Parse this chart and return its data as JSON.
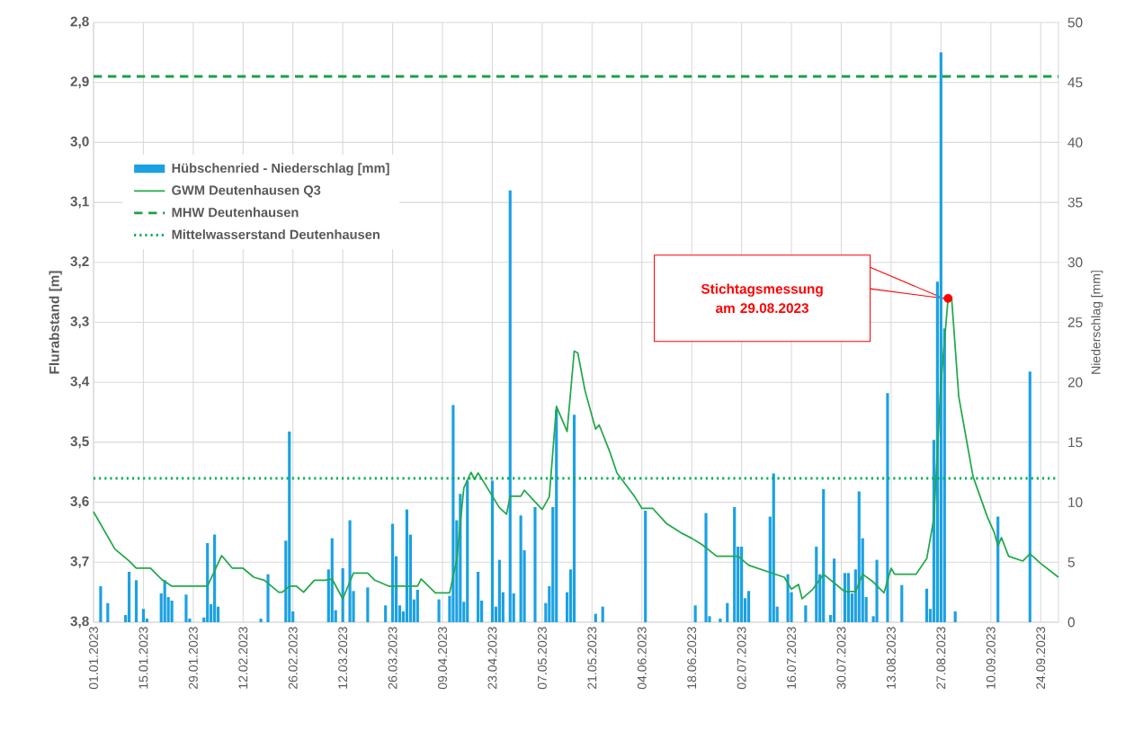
{
  "chart_data": {
    "type": "bar",
    "ylabel": "Flurabstand [m]",
    "y2label": "Niederschlag [mm]",
    "xlim": [
      "2023-01-01",
      "2023-09-29"
    ],
    "xticks": [
      {
        "value": "2023-01-01",
        "label": "01.01.2023"
      },
      {
        "value": "2023-01-15",
        "label": "15.01.2023"
      },
      {
        "value": "2023-01-29",
        "label": "29.01.2023"
      },
      {
        "value": "2023-02-12",
        "label": "12.02.2023"
      },
      {
        "value": "2023-02-26",
        "label": "26.02.2023"
      },
      {
        "value": "2023-03-12",
        "label": "12.03.2023"
      },
      {
        "value": "2023-03-26",
        "label": "26.03.2023"
      },
      {
        "value": "2023-04-09",
        "label": "09.04.2023"
      },
      {
        "value": "2023-04-23",
        "label": "23.04.2023"
      },
      {
        "value": "2023-05-07",
        "label": "07.05.2023"
      },
      {
        "value": "2023-05-21",
        "label": "21.05.2023"
      },
      {
        "value": "2023-06-04",
        "label": "04.06.2023"
      },
      {
        "value": "2023-06-18",
        "label": "18.06.2023"
      },
      {
        "value": "2023-07-02",
        "label": "02.07.2023"
      },
      {
        "value": "2023-07-16",
        "label": "16.07.2023"
      },
      {
        "value": "2023-07-30",
        "label": "30.07.2023"
      },
      {
        "value": "2023-08-13",
        "label": "13.08.2023"
      },
      {
        "value": "2023-08-27",
        "label": "27.08.2023"
      },
      {
        "value": "2023-09-10",
        "label": "10.09.2023"
      },
      {
        "value": "2023-09-24",
        "label": "24.09.2023"
      }
    ],
    "ylim": [
      3.8,
      2.8
    ],
    "yticks": [
      {
        "value": 3.8,
        "label": "3,8"
      },
      {
        "value": 3.7,
        "label": "3,7"
      },
      {
        "value": 3.6,
        "label": "3,6"
      },
      {
        "value": 3.5,
        "label": "3,5"
      },
      {
        "value": 3.4,
        "label": "3,4"
      },
      {
        "value": 3.3,
        "label": "3,3"
      },
      {
        "value": 3.2,
        "label": "3,2"
      },
      {
        "value": 3.1,
        "label": "3,1"
      },
      {
        "value": 3.0,
        "label": "3,0"
      },
      {
        "value": 2.9,
        "label": "2,9"
      },
      {
        "value": 2.8,
        "label": "2,8"
      }
    ],
    "y2lim": [
      0,
      50
    ],
    "y2ticks": [
      0,
      5,
      10,
      15,
      20,
      25,
      30,
      35,
      40,
      45,
      50
    ],
    "grid": true,
    "legend": "top left",
    "series": [
      {
        "name": "Hübschenried - Niederschlag [mm]",
        "type": "bar",
        "axis": "y2",
        "color": "#1ba1e2",
        "x": [
          "2023-01-03",
          "2023-01-05",
          "2023-01-10",
          "2023-01-11",
          "2023-01-13",
          "2023-01-15",
          "2023-01-16",
          "2023-01-20",
          "2023-01-21",
          "2023-01-22",
          "2023-01-23",
          "2023-01-27",
          "2023-01-28",
          "2023-02-01",
          "2023-02-02",
          "2023-02-03",
          "2023-02-04",
          "2023-02-05",
          "2023-02-17",
          "2023-02-19",
          "2023-02-24",
          "2023-02-25",
          "2023-02-26",
          "2023-03-08",
          "2023-03-09",
          "2023-03-10",
          "2023-03-12",
          "2023-03-14",
          "2023-03-15",
          "2023-03-19",
          "2023-03-24",
          "2023-03-26",
          "2023-03-27",
          "2023-03-28",
          "2023-03-29",
          "2023-03-30",
          "2023-03-31",
          "2023-04-01",
          "2023-04-02",
          "2023-04-08",
          "2023-04-11",
          "2023-04-12",
          "2023-04-13",
          "2023-04-14",
          "2023-04-15",
          "2023-04-16",
          "2023-04-19",
          "2023-04-20",
          "2023-04-23",
          "2023-04-24",
          "2023-04-25",
          "2023-04-26",
          "2023-04-28",
          "2023-04-29",
          "2023-05-01",
          "2023-05-02",
          "2023-05-05",
          "2023-05-08",
          "2023-05-09",
          "2023-05-10",
          "2023-05-11",
          "2023-05-14",
          "2023-05-15",
          "2023-05-16",
          "2023-05-22",
          "2023-05-24",
          "2023-06-05",
          "2023-06-19",
          "2023-06-22",
          "2023-06-23",
          "2023-06-26",
          "2023-06-28",
          "2023-06-30",
          "2023-07-01",
          "2023-07-02",
          "2023-07-03",
          "2023-07-04",
          "2023-07-10",
          "2023-07-11",
          "2023-07-12",
          "2023-07-15",
          "2023-07-16",
          "2023-07-20",
          "2023-07-23",
          "2023-07-24",
          "2023-07-25",
          "2023-07-27",
          "2023-07-28",
          "2023-07-31",
          "2023-08-01",
          "2023-08-02",
          "2023-08-03",
          "2023-08-04",
          "2023-08-05",
          "2023-08-06",
          "2023-08-08",
          "2023-08-09",
          "2023-08-12",
          "2023-08-16",
          "2023-08-23",
          "2023-08-24",
          "2023-08-25",
          "2023-08-26",
          "2023-08-27",
          "2023-08-28",
          "2023-08-31",
          "2023-09-12",
          "2023-09-21"
        ],
        "values": [
          3.0,
          1.6,
          0.6,
          4.2,
          3.5,
          1.1,
          0.3,
          2.4,
          3.5,
          2.1,
          1.8,
          2.3,
          0.3,
          0.4,
          6.6,
          1.5,
          7.3,
          1.3,
          0.3,
          4.0,
          6.8,
          15.9,
          0.9,
          4.4,
          7.0,
          1.0,
          4.5,
          8.5,
          2.6,
          2.9,
          1.4,
          8.2,
          5.5,
          1.4,
          0.9,
          9.4,
          7.3,
          1.9,
          2.7,
          1.9,
          2.2,
          18.1,
          8.5,
          10.7,
          1.7,
          11.8,
          4.2,
          1.8,
          11.8,
          1.3,
          5.2,
          2.5,
          36.0,
          2.4,
          8.9,
          6.0,
          9.6,
          1.6,
          3.0,
          9.6,
          17.7,
          2.5,
          4.4,
          17.3,
          0.7,
          1.3,
          9.3,
          1.4,
          9.1,
          0.5,
          0.3,
          1.6,
          9.6,
          6.3,
          6.3,
          2.0,
          2.6,
          8.8,
          12.4,
          1.3,
          4.0,
          2.5,
          1.4,
          6.3,
          4.0,
          11.1,
          0.6,
          5.3,
          4.1,
          4.1,
          2.4,
          4.4,
          10.9,
          7.0,
          2.1,
          0.5,
          5.2,
          19.1,
          3.1,
          2.8,
          1.1,
          15.2,
          28.4,
          47.5,
          24.5,
          0.9,
          8.8,
          20.9
        ]
      },
      {
        "name": "GWM Deutenhausen Q3",
        "type": "line",
        "color": "#22a84a",
        "x": [
          "2023-01-01",
          "2023-01-07",
          "2023-01-11",
          "2023-01-13",
          "2023-01-17",
          "2023-01-20",
          "2023-01-23",
          "2023-02-02",
          "2023-02-06",
          "2023-02-09",
          "2023-02-12",
          "2023-02-15",
          "2023-02-18",
          "2023-02-22",
          "2023-02-23",
          "2023-02-25",
          "2023-02-27",
          "2023-03-01",
          "2023-03-04",
          "2023-03-07",
          "2023-03-09",
          "2023-03-12",
          "2023-03-15",
          "2023-03-19",
          "2023-03-21",
          "2023-03-25",
          "2023-04-02",
          "2023-04-03",
          "2023-04-07",
          "2023-04-11",
          "2023-04-13",
          "2023-04-15",
          "2023-04-17",
          "2023-04-18",
          "2023-04-19",
          "2023-04-25",
          "2023-04-27",
          "2023-04-28",
          "2023-05-01",
          "2023-05-02",
          "2023-05-04",
          "2023-05-07",
          "2023-05-09",
          "2023-05-11",
          "2023-05-14",
          "2023-05-16",
          "2023-05-17",
          "2023-05-19",
          "2023-05-22",
          "2023-05-23",
          "2023-05-26",
          "2023-05-28",
          "2023-06-02",
          "2023-06-04",
          "2023-06-07",
          "2023-06-11",
          "2023-06-15",
          "2023-06-18",
          "2023-06-21",
          "2023-06-25",
          "2023-07-01",
          "2023-07-04",
          "2023-07-14",
          "2023-07-16",
          "2023-07-18",
          "2023-07-19",
          "2023-07-22",
          "2023-07-25",
          "2023-07-31",
          "2023-08-03",
          "2023-08-05",
          "2023-08-08",
          "2023-08-11",
          "2023-08-13",
          "2023-08-14",
          "2023-08-20",
          "2023-08-23",
          "2023-08-25",
          "2023-08-27",
          "2023-08-29",
          "2023-08-30",
          "2023-09-01",
          "2023-09-05",
          "2023-09-09",
          "2023-09-11",
          "2023-09-12",
          "2023-09-13",
          "2023-09-15",
          "2023-09-19",
          "2023-09-21",
          "2023-09-24",
          "2023-09-29"
        ],
        "values": [
          3.616,
          3.678,
          3.698,
          3.71,
          3.71,
          3.728,
          3.74,
          3.74,
          3.689,
          3.71,
          3.71,
          3.725,
          3.73,
          3.75,
          3.75,
          3.74,
          3.74,
          3.75,
          3.73,
          3.73,
          3.728,
          3.761,
          3.718,
          3.718,
          3.73,
          3.74,
          3.74,
          3.728,
          3.751,
          3.751,
          3.696,
          3.576,
          3.55,
          3.562,
          3.551,
          3.609,
          3.62,
          3.59,
          3.59,
          3.58,
          3.593,
          3.612,
          3.591,
          3.44,
          3.482,
          3.348,
          3.351,
          3.413,
          3.478,
          3.471,
          3.516,
          3.551,
          3.591,
          3.61,
          3.61,
          3.636,
          3.651,
          3.66,
          3.671,
          3.69,
          3.69,
          3.705,
          3.725,
          3.745,
          3.737,
          3.761,
          3.745,
          3.72,
          3.749,
          3.749,
          3.72,
          3.733,
          3.751,
          3.71,
          3.72,
          3.72,
          3.694,
          3.627,
          3.4,
          3.26,
          3.26,
          3.424,
          3.557,
          3.624,
          3.651,
          3.673,
          3.659,
          3.69,
          3.698,
          3.686,
          3.702,
          3.725
        ]
      },
      {
        "type": "scatter",
        "color": "#ff0000",
        "x": [
          "2023-08-29"
        ],
        "values": [
          3.26
        ]
      }
    ],
    "ref_lines": [
      {
        "axis": "y",
        "value": 2.89,
        "label": "MHW Deutenhausen",
        "color": "#1e9e4b",
        "line_style": "dashed"
      },
      {
        "axis": "y",
        "value": 3.56,
        "label": "Mittelwasserstand Deutenhausen",
        "color": "#00b050",
        "line_style": "dotted"
      }
    ],
    "annotations": [
      "Stichtagsmessung am 29.08.2023"
    ]
  }
}
